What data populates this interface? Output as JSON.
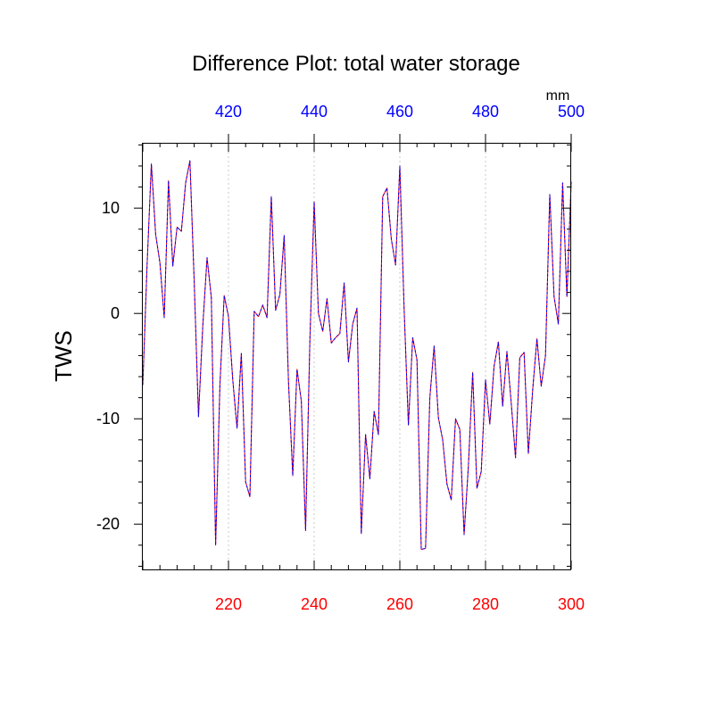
{
  "chart_data": {
    "type": "line",
    "title": "Difference Plot: total water storage",
    "ylabel": "TWS",
    "xlabel": "",
    "top_axis_unit": "mm",
    "xlim": [
      200,
      300
    ],
    "top_xlim": [
      400,
      500
    ],
    "ylim": [
      -24.3,
      16.2
    ],
    "x_ticks": [
      220,
      240,
      260,
      280,
      300
    ],
    "x_tick_labels": [
      "220",
      "240",
      "260",
      "280",
      "300"
    ],
    "x_tick_color": "#ff0000",
    "top_ticks": [
      420,
      440,
      460,
      480,
      500
    ],
    "top_tick_labels": [
      "420",
      "440",
      "460",
      "480",
      "500"
    ],
    "top_tick_color": "#0000ff",
    "y_ticks": [
      10,
      0,
      -10,
      -20
    ],
    "y_tick_labels": [
      "10",
      "0",
      "-10",
      "-20"
    ],
    "grid": "vertical dotted at major x ticks",
    "series": [
      {
        "name": "series-red",
        "color": "#ff0000",
        "x": [
          200,
          201,
          202,
          203,
          204,
          205,
          206,
          207,
          208,
          209,
          210,
          211,
          212,
          213,
          214,
          215,
          216,
          217,
          218,
          219,
          220,
          221,
          222,
          223,
          224,
          225,
          226,
          227,
          228,
          229,
          230,
          231,
          232,
          233,
          234,
          235,
          236,
          237,
          238,
          239,
          240,
          241,
          242,
          243,
          244,
          245,
          246,
          247,
          248,
          249,
          250,
          251,
          252,
          253,
          254,
          255,
          256,
          257,
          258,
          259,
          260,
          261,
          262,
          263,
          264,
          265,
          266,
          267,
          268,
          269,
          270,
          271,
          272,
          273,
          274,
          275,
          276,
          277,
          278,
          279,
          280,
          281,
          282,
          283,
          284,
          285,
          286,
          287,
          288,
          289,
          290,
          291,
          292,
          293,
          294,
          295,
          296,
          297,
          298,
          299,
          300
        ],
        "values": [
          -6.8,
          4.6,
          14.2,
          7.5,
          4.8,
          -0.4,
          12.6,
          4.5,
          8.2,
          7.8,
          12.4,
          14.5,
          3.0,
          -9.8,
          -1.2,
          5.3,
          1.5,
          -22.0,
          -6.8,
          1.7,
          -0.3,
          -6.3,
          -10.9,
          -3.8,
          -16.0,
          -17.4,
          0.2,
          -0.3,
          0.8,
          -0.4,
          11.1,
          0.3,
          1.8,
          7.4,
          -6.4,
          -15.4,
          -5.3,
          -8.3,
          -20.6,
          -2.6,
          10.6,
          0.0,
          -1.7,
          1.4,
          -2.8,
          -2.3,
          -1.9,
          2.9,
          -4.6,
          -1.0,
          0.5,
          -20.9,
          -11.5,
          -15.7,
          -9.3,
          -11.5,
          11.1,
          11.9,
          7.1,
          4.6,
          14.0,
          0.4,
          -10.6,
          -2.3,
          -4.4,
          -22.4,
          -22.3,
          -8.0,
          -3.1,
          -9.9,
          -12.0,
          -16.2,
          -17.7,
          -10.0,
          -11.0,
          -21.0,
          -14.5,
          -5.6,
          -16.6,
          -15.0,
          -6.3,
          -10.5,
          -5.0,
          -2.7,
          -8.8,
          -3.6,
          -8.5,
          -13.7,
          -4.2,
          -3.7,
          -13.3,
          -7.3,
          -2.4,
          -6.9,
          -4.0,
          11.3,
          1.6,
          -1.0,
          12.4,
          1.6,
          12.5
        ]
      },
      {
        "name": "series-blue",
        "color": "#0000ff",
        "x": [
          200,
          201,
          202,
          203,
          204,
          205,
          206,
          207,
          208,
          209,
          210,
          211,
          212,
          213,
          214,
          215,
          216,
          217,
          218,
          219,
          220,
          221,
          222,
          223,
          224,
          225,
          226,
          227,
          228,
          229,
          230,
          231,
          232,
          233,
          234,
          235,
          236,
          237,
          238,
          239,
          240,
          241,
          242,
          243,
          244,
          245,
          246,
          247,
          248,
          249,
          250,
          251,
          252,
          253,
          254,
          255,
          256,
          257,
          258,
          259,
          260,
          261,
          262,
          263,
          264,
          265,
          266,
          267,
          268,
          269,
          270,
          271,
          272,
          273,
          274,
          275,
          276,
          277,
          278,
          279,
          280,
          281,
          282,
          283,
          284,
          285,
          286,
          287,
          288,
          289,
          290,
          291,
          292,
          293,
          294,
          295,
          296,
          297,
          298,
          299,
          300
        ],
        "values": [
          -6.8,
          4.6,
          14.2,
          7.5,
          4.8,
          -0.4,
          12.6,
          4.5,
          8.2,
          7.8,
          12.4,
          14.5,
          3.0,
          -9.8,
          -1.2,
          5.3,
          1.5,
          -22.0,
          -6.8,
          1.7,
          -0.3,
          -6.3,
          -10.9,
          -3.8,
          -16.0,
          -17.4,
          0.2,
          -0.3,
          0.8,
          -0.4,
          11.1,
          0.3,
          1.8,
          7.4,
          -6.4,
          -15.4,
          -5.3,
          -8.3,
          -20.6,
          -2.6,
          10.6,
          0.0,
          -1.7,
          1.4,
          -2.8,
          -2.3,
          -1.9,
          2.9,
          -4.6,
          -1.0,
          0.5,
          -20.9,
          -11.5,
          -15.7,
          -9.3,
          -11.5,
          11.1,
          11.9,
          7.1,
          4.6,
          14.0,
          0.4,
          -10.6,
          -2.3,
          -4.4,
          -22.4,
          -22.3,
          -8.0,
          -3.1,
          -9.9,
          -12.0,
          -16.2,
          -17.7,
          -10.0,
          -11.0,
          -21.0,
          -14.5,
          -5.6,
          -16.6,
          -15.0,
          -6.3,
          -10.5,
          -5.0,
          -2.7,
          -8.8,
          -3.6,
          -8.5,
          -13.7,
          -4.2,
          -3.7,
          -13.3,
          -7.3,
          -2.4,
          -6.9,
          -4.0,
          11.3,
          1.6,
          -1.0,
          12.4,
          1.6,
          12.5
        ]
      }
    ]
  }
}
